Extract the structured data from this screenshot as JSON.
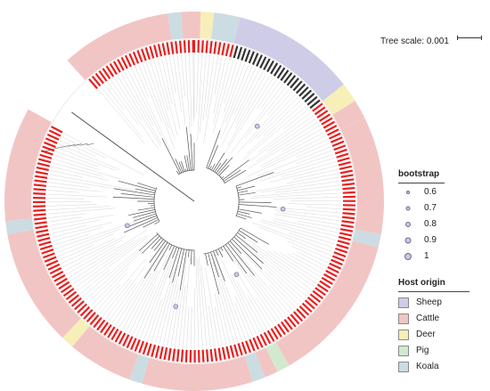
{
  "scale": {
    "label": "Tree scale: 0.001"
  },
  "bootstrap": {
    "title": "bootstrap",
    "items": [
      {
        "value": "0.6"
      },
      {
        "value": "0.7"
      },
      {
        "value": "0.8"
      },
      {
        "value": "0.9"
      },
      {
        "value": "1"
      }
    ]
  },
  "host_origin": {
    "title": "Host origin",
    "items": [
      {
        "label": "Sheep",
        "color": "#cfcce8"
      },
      {
        "label": "Cattle",
        "color": "#f2c5c5"
      },
      {
        "label": "Deer",
        "color": "#f7efb8"
      },
      {
        "label": "Pig",
        "color": "#d3e9cf"
      },
      {
        "label": "Koala",
        "color": "#cbdde2"
      }
    ]
  },
  "colors": {
    "cattle_label": "#e8201f",
    "branch": "#555555",
    "other_label": "#333333"
  }
}
